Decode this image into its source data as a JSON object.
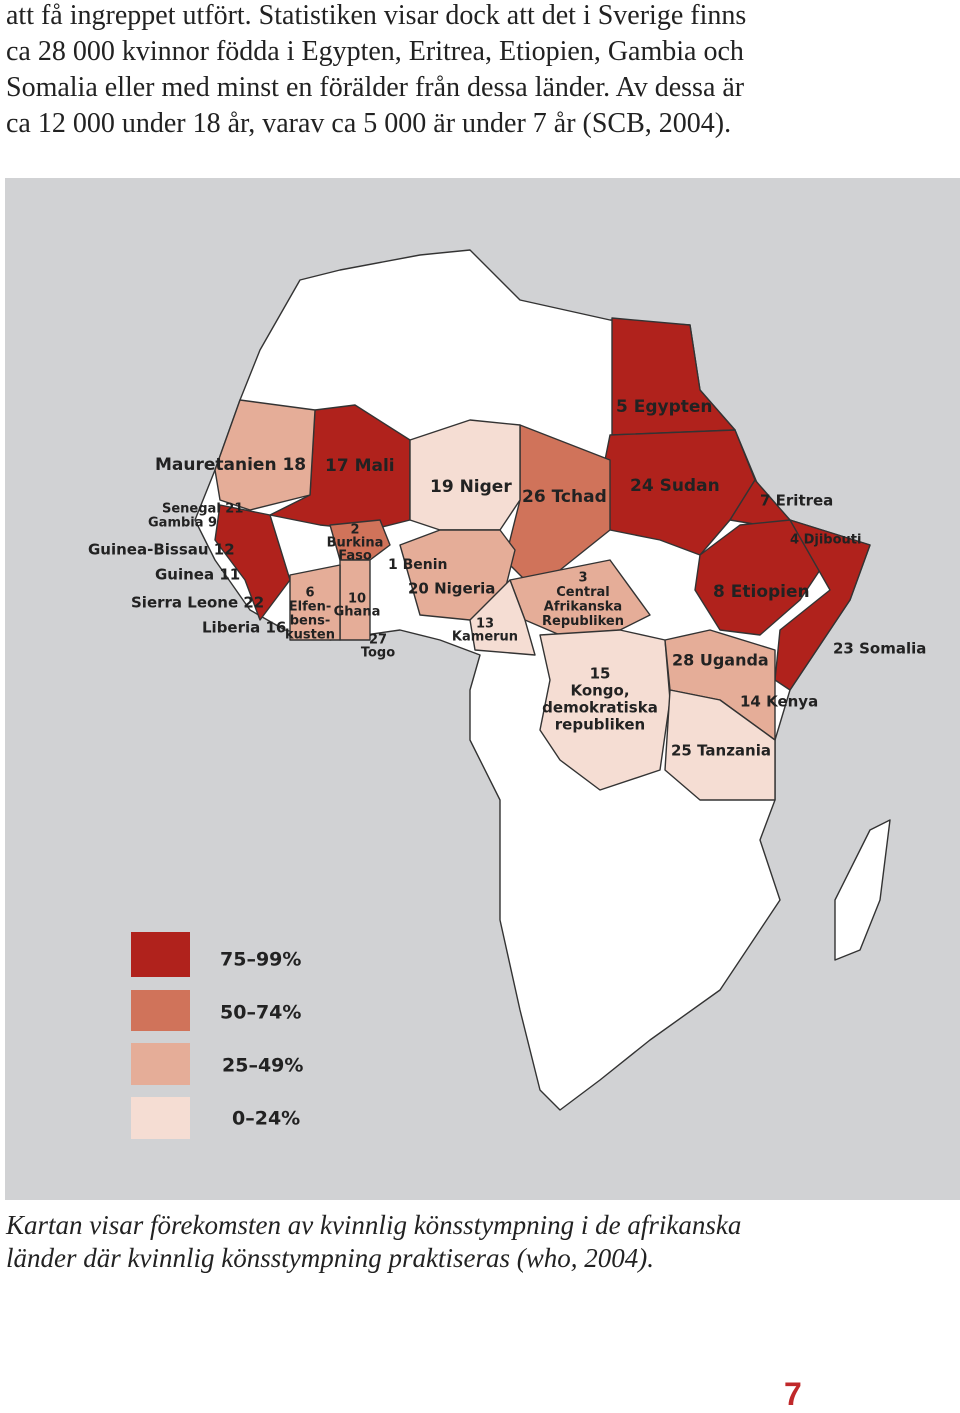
{
  "body_lines": [
    "att få ingreppet utfört. Statistiken visar dock att det i Sverige finns",
    "ca 28 000 kvinnor födda i Egypten, Eritrea, Etiopien, Gambia och",
    "Somalia eller med minst en förälder från dessa länder. Av dessa är",
    "ca 12 000 under 18 år, varav ca 5 000 är under 7 år (SCB, 2004)."
  ],
  "map": {
    "labels": [
      [
        "Mauretanien 18"
      ],
      [
        "17 Mali"
      ],
      [
        "Senegal 21"
      ],
      [
        "Gambia 9"
      ],
      [
        "Guinea-Bissau 12"
      ],
      [
        "Guinea 11"
      ],
      [
        "Sierra Leone 22"
      ],
      [
        "Liberia 16"
      ],
      [
        "2",
        "Burkina",
        "Faso"
      ],
      [
        "1 Benin"
      ],
      [
        "19 Niger"
      ],
      [
        "26 Tchad"
      ],
      [
        "24 Sudan"
      ],
      [
        "5 Egypten"
      ],
      [
        "7 Eritrea"
      ],
      [
        "4 Djibouti"
      ],
      [
        "8 Etiopien"
      ],
      [
        "23 Somalia"
      ],
      [
        "20 Nigeria"
      ],
      [
        "3",
        "Central",
        "Afrikanska",
        "Republiken"
      ],
      [
        "13",
        "Kamerun"
      ],
      [
        "6",
        "Elfen-",
        "bens-",
        "kusten"
      ],
      [
        "10",
        "Ghana"
      ],
      [
        "27",
        "Togo"
      ],
      [
        "28 Uganda"
      ],
      [
        "15",
        "Kongo,",
        "demokratiska",
        "republiken"
      ],
      [
        "14 Kenya"
      ],
      [
        "25 Tanzania"
      ]
    ],
    "legend": [
      "75–99%",
      "50–74%",
      "25–49%",
      "0–24%"
    ]
  },
  "caption_lines": [
    "Kartan visar förekomsten av kvinnlig könsstympning i de afrikanska",
    "länder där kvinnlig könsstympning praktiseras (who, 2004)."
  ],
  "page_number": "7"
}
